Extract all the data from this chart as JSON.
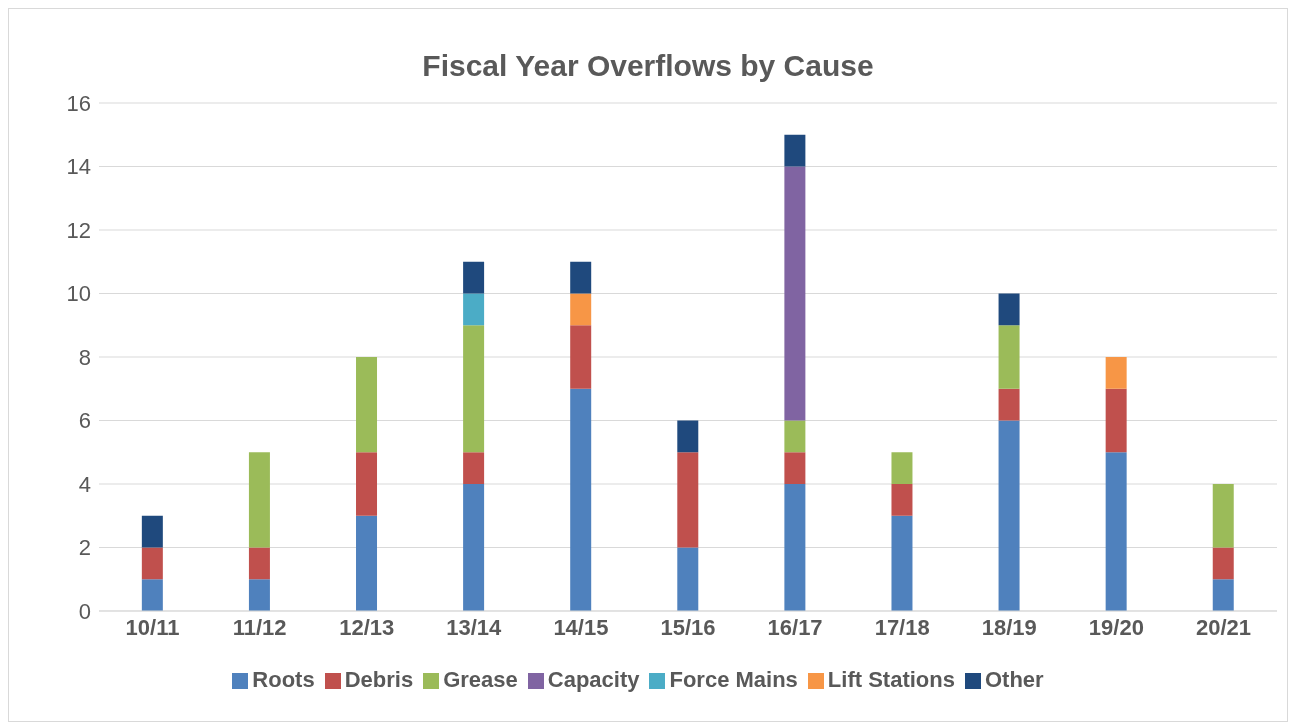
{
  "chart_data": {
    "type": "bar",
    "title": "Fiscal Year Overflows by Cause",
    "stacked": true,
    "categories": [
      "10/11",
      "11/12",
      "12/13",
      "13/14",
      "14/15",
      "15/16",
      "16/17",
      "17/18",
      "18/19",
      "19/20",
      "20/21"
    ],
    "series": [
      {
        "name": "Roots",
        "color": "#4f81bd",
        "values": [
          1,
          1,
          3,
          4,
          7,
          2,
          4,
          3,
          6,
          5,
          1
        ]
      },
      {
        "name": "Debris",
        "color": "#c0504d",
        "values": [
          1,
          1,
          2,
          1,
          2,
          3,
          1,
          1,
          1,
          2,
          1
        ]
      },
      {
        "name": "Grease",
        "color": "#9bbb59",
        "values": [
          0,
          3,
          3,
          4,
          0,
          0,
          1,
          1,
          2,
          0,
          2
        ]
      },
      {
        "name": "Capacity",
        "color": "#8064a2",
        "values": [
          0,
          0,
          0,
          0,
          0,
          0,
          8,
          0,
          0,
          0,
          0
        ]
      },
      {
        "name": "Force Mains",
        "color": "#4bacc6",
        "values": [
          0,
          0,
          0,
          1,
          0,
          0,
          0,
          0,
          0,
          0,
          0
        ]
      },
      {
        "name": "Lift Stations",
        "color": "#f79646",
        "values": [
          0,
          0,
          0,
          0,
          1,
          0,
          0,
          0,
          0,
          1,
          0
        ]
      },
      {
        "name": "Other",
        "color": "#1f497d",
        "values": [
          1,
          0,
          0,
          1,
          1,
          1,
          1,
          0,
          1,
          0,
          0
        ]
      }
    ],
    "ylim": [
      0,
      16
    ],
    "yticks": [
      0,
      2,
      4,
      6,
      8,
      10,
      12,
      14,
      16
    ],
    "grid": "y",
    "legend": "bottom"
  }
}
